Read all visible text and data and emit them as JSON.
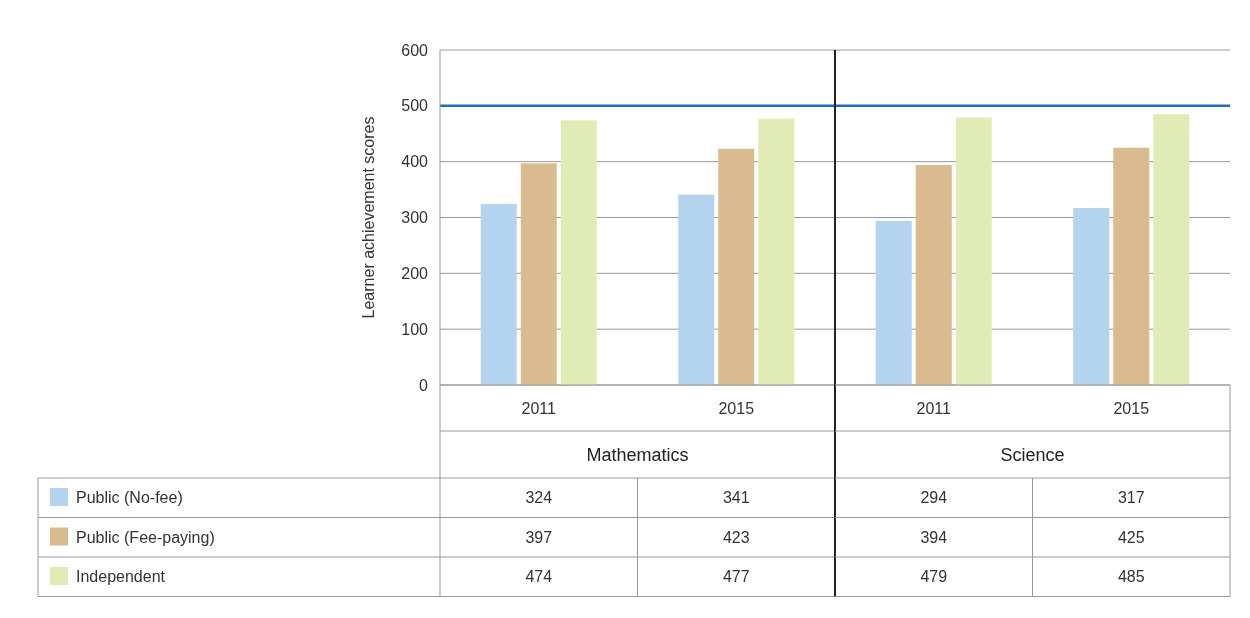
{
  "chart_data": [
    {
      "type": "bar",
      "ylabel": "Learner achievement scores",
      "xlabel": "Mathematics",
      "categories": [
        "2011",
        "2015"
      ],
      "ylim": [
        0,
        600
      ],
      "yticks": [
        0,
        100,
        200,
        300,
        400,
        500,
        600
      ],
      "grid": "y",
      "legend": "bottom",
      "data_labels": true,
      "series": [
        {
          "name": "Public (No-fee)",
          "color": "#b3d3ee",
          "values": [
            324,
            341
          ]
        },
        {
          "name": "Public (Fee-paying)",
          "color": "#d9bb8f",
          "values": [
            397,
            423
          ]
        },
        {
          "name": "Independent",
          "color": "#e0ebb5",
          "values": [
            474,
            477
          ]
        }
      ],
      "ref_lines": [
        {
          "axis": "y",
          "value": 500,
          "color": "#1f6eb5"
        }
      ]
    },
    {
      "type": "bar",
      "xlabel": "Science",
      "categories": [
        "2011",
        "2015"
      ],
      "ylim": [
        0,
        600
      ],
      "yticks": [
        0,
        100,
        200,
        300,
        400,
        500,
        600
      ],
      "grid": "y",
      "tick_labels": "x",
      "data_labels": true,
      "series": [
        {
          "color": "#b3d3ee",
          "values": [
            294,
            317
          ]
        },
        {
          "color": "#d9bb8f",
          "values": [
            394,
            425
          ]
        },
        {
          "color": "#e0ebb5",
          "values": [
            479,
            485
          ]
        }
      ],
      "ref_lines": [
        {
          "axis": "y",
          "value": 500,
          "color": "#1f6eb5"
        }
      ]
    }
  ]
}
